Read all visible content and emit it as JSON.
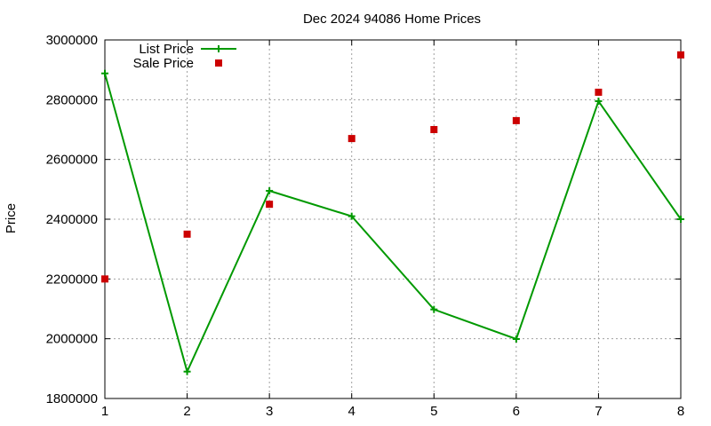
{
  "chart_data": {
    "type": "line",
    "title": "Dec 2024 94086 Home Prices",
    "xlabel": "",
    "ylabel": "Price",
    "x": [
      1,
      2,
      3,
      4,
      5,
      6,
      7,
      8
    ],
    "xlim": [
      1,
      8
    ],
    "ylim": [
      1800000,
      3000000
    ],
    "xticks": [
      "1",
      "2",
      "3",
      "4",
      "5",
      "6",
      "7",
      "8"
    ],
    "yticks": [
      "1800000",
      "2000000",
      "2200000",
      "2400000",
      "2600000",
      "2800000",
      "3000000"
    ],
    "grid": true,
    "legend_position": "top-left",
    "series": [
      {
        "name": "List Price",
        "style": "linespoints",
        "marker": "plus",
        "color": "#009900",
        "values": [
          2888000,
          1890000,
          2495000,
          2410000,
          2098000,
          1999000,
          2795000,
          2400000
        ]
      },
      {
        "name": "Sale Price",
        "style": "points",
        "marker": "square",
        "color": "#cc0000",
        "values": [
          2200000,
          2350000,
          2450000,
          2670000,
          2700000,
          2730000,
          2825000,
          2950000
        ]
      }
    ]
  }
}
